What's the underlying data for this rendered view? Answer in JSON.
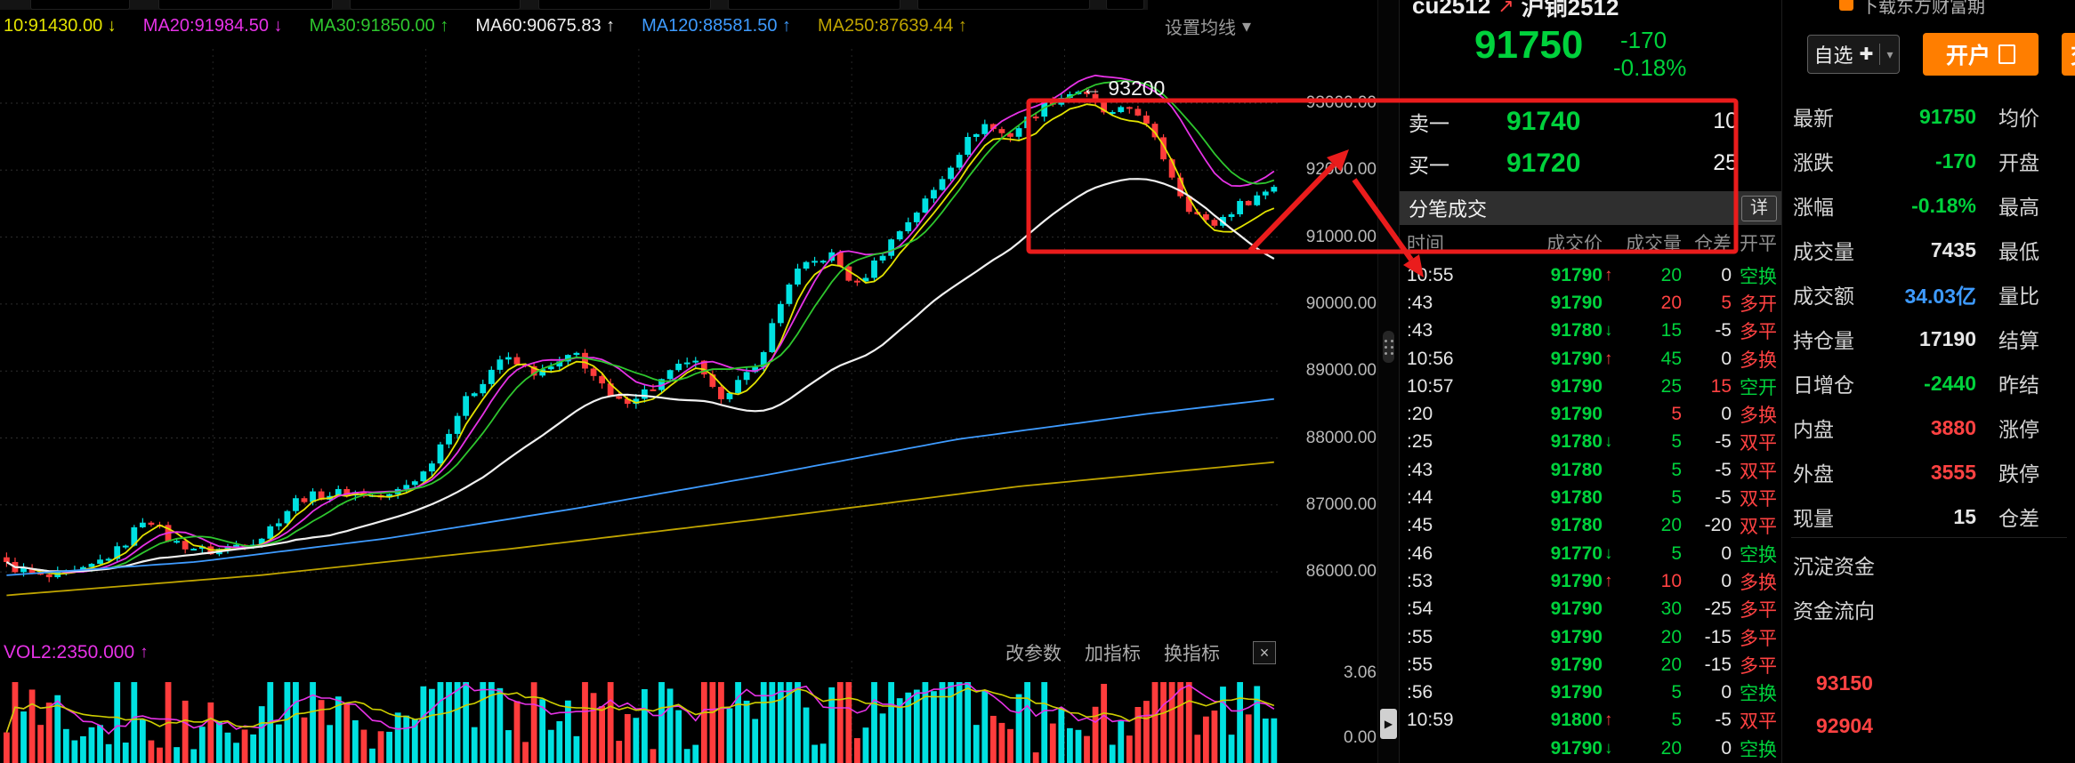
{
  "window": {
    "top_right_partial": "下载东方财富期"
  },
  "ma_bar": {
    "items": [
      {
        "text": "10:91430.00",
        "arrow": "↓",
        "color": "#e3e300"
      },
      {
        "text": "MA20:91984.50",
        "arrow": "↓",
        "color": "#e632e6"
      },
      {
        "text": "MA30:91850.00",
        "arrow": "↑",
        "color": "#2ec72e"
      },
      {
        "text": "MA60:90675.83",
        "arrow": "↑",
        "color": "#f0f0f0"
      },
      {
        "text": "MA120:88581.50",
        "arrow": "↑",
        "color": "#3e9bff"
      },
      {
        "text": "MA250:87639.44",
        "arrow": "↑",
        "color": "#bfa400"
      }
    ],
    "settings_label": "设置均线",
    "caret": "▾"
  },
  "chart_data": {
    "type": "candlestick",
    "title": "cu2512 沪铜2512",
    "y_axis_labels": [
      "93000.00",
      "92000.00",
      "91000.00",
      "90000.00",
      "89000.00",
      "88000.00",
      "87000.00",
      "86000.00"
    ],
    "peak_annotation": "← 93200",
    "candle_count": 150,
    "last_close": 91750,
    "price_path": [
      [
        0,
        86100
      ],
      [
        0.03,
        85900
      ],
      [
        0.06,
        86000
      ],
      [
        0.09,
        86350
      ],
      [
        0.11,
        86850
      ],
      [
        0.13,
        86450
      ],
      [
        0.16,
        86300
      ],
      [
        0.2,
        86500
      ],
      [
        0.23,
        87100
      ],
      [
        0.27,
        87200
      ],
      [
        0.3,
        87100
      ],
      [
        0.33,
        87500
      ],
      [
        0.36,
        88500
      ],
      [
        0.39,
        89200
      ],
      [
        0.42,
        88950
      ],
      [
        0.45,
        89250
      ],
      [
        0.48,
        88500
      ],
      [
        0.51,
        88750
      ],
      [
        0.54,
        89200
      ],
      [
        0.56,
        88600
      ],
      [
        0.59,
        89000
      ],
      [
        0.62,
        90450
      ],
      [
        0.65,
        90750
      ],
      [
        0.67,
        90250
      ],
      [
        0.7,
        91000
      ],
      [
        0.73,
        91650
      ],
      [
        0.75,
        92250
      ],
      [
        0.77,
        92700
      ],
      [
        0.79,
        92500
      ],
      [
        0.82,
        93000
      ],
      [
        0.845,
        93200
      ],
      [
        0.87,
        92800
      ],
      [
        0.89,
        92950
      ],
      [
        0.91,
        92300
      ],
      [
        0.93,
        91500
      ],
      [
        0.95,
        91150
      ],
      [
        0.97,
        91450
      ],
      [
        1,
        91750
      ]
    ],
    "ma_lines": [
      {
        "name": "MA10",
        "color": "#e3e300",
        "window": 4,
        "end": 91430.0
      },
      {
        "name": "MA20",
        "color": "#e632e6",
        "window": 7,
        "end": 91984.5
      },
      {
        "name": "MA30",
        "color": "#2ec72e",
        "window": 10,
        "end": 91850.0
      },
      {
        "name": "MA60",
        "color": "#f0f0f0",
        "window": 20,
        "end": 90675.83
      },
      {
        "name": "MA120",
        "color": "#3e9bff",
        "path": [
          [
            0,
            85950
          ],
          [
            0.15,
            86150
          ],
          [
            0.3,
            86500
          ],
          [
            0.45,
            86950
          ],
          [
            0.6,
            87450
          ],
          [
            0.75,
            87980
          ],
          [
            0.9,
            88360
          ],
          [
            1,
            88581.5
          ]
        ]
      },
      {
        "name": "MA250",
        "color": "#bfa400",
        "path": [
          [
            0,
            85650
          ],
          [
            0.2,
            85950
          ],
          [
            0.4,
            86350
          ],
          [
            0.6,
            86800
          ],
          [
            0.8,
            87280
          ],
          [
            1,
            87639.44
          ]
        ]
      }
    ],
    "volume": {
      "ma_colors": [
        "#e632e6",
        "#cfcf00"
      ]
    }
  },
  "vol_pane": {
    "legend": "VOL2:2350.000",
    "arrow": "↑",
    "buttons": [
      "改参数",
      "加指标",
      "换指标"
    ],
    "close": "×",
    "axis_max": "3.06",
    "axis_min": "0.00"
  },
  "tick_panel": {
    "symbol": "cu2512",
    "trend_icon": "↗",
    "name": "沪铜2512",
    "last_price": "91750",
    "change": "-170",
    "change_pct": "-0.18%",
    "orderbook": [
      {
        "label": "卖一",
        "price": "91740",
        "qty": "10"
      },
      {
        "label": "买一",
        "price": "91720",
        "qty": "25"
      }
    ],
    "section_title": "分笔成交",
    "detail_button": "详",
    "columns": [
      "时间",
      "成交价",
      "成交量",
      "仓差",
      "开平"
    ],
    "rows": [
      {
        "time": "10:55",
        "price": "91790",
        "arrow": "↑",
        "vol": "20",
        "volc": "g",
        "diff": "0",
        "diffc": "w",
        "type": "空换",
        "typec": "g"
      },
      {
        "time": ":43",
        "price": "91790",
        "arrow": "",
        "vol": "20",
        "volc": "r",
        "diff": "5",
        "diffc": "r",
        "type": "多开",
        "typec": "r"
      },
      {
        "time": ":43",
        "price": "91780",
        "arrow": "↓",
        "vol": "15",
        "volc": "g",
        "diff": "-5",
        "diffc": "w",
        "type": "多平",
        "typec": "r"
      },
      {
        "time": "10:56",
        "price": "91790",
        "arrow": "↑",
        "vol": "45",
        "volc": "g",
        "diff": "0",
        "diffc": "w",
        "type": "多换",
        "typec": "r"
      },
      {
        "time": "10:57",
        "price": "91790",
        "arrow": "",
        "vol": "25",
        "volc": "g",
        "diff": "15",
        "diffc": "r",
        "type": "空开",
        "typec": "g"
      },
      {
        "time": ":20",
        "price": "91790",
        "arrow": "",
        "vol": "5",
        "volc": "r",
        "diff": "0",
        "diffc": "w",
        "type": "多换",
        "typec": "r"
      },
      {
        "time": ":25",
        "price": "91780",
        "arrow": "↓",
        "vol": "5",
        "volc": "g",
        "diff": "-5",
        "diffc": "w",
        "type": "双平",
        "typec": "r"
      },
      {
        "time": ":43",
        "price": "91780",
        "arrow": "",
        "vol": "5",
        "volc": "g",
        "diff": "-5",
        "diffc": "w",
        "type": "双平",
        "typec": "r"
      },
      {
        "time": ":44",
        "price": "91780",
        "arrow": "",
        "vol": "5",
        "volc": "g",
        "diff": "-5",
        "diffc": "w",
        "type": "双平",
        "typec": "r"
      },
      {
        "time": ":45",
        "price": "91780",
        "arrow": "",
        "vol": "20",
        "volc": "g",
        "diff": "-20",
        "diffc": "w",
        "type": "双平",
        "typec": "r"
      },
      {
        "time": ":46",
        "price": "91770",
        "arrow": "↓",
        "vol": "5",
        "volc": "g",
        "diff": "0",
        "diffc": "w",
        "type": "空换",
        "typec": "g"
      },
      {
        "time": ":53",
        "price": "91790",
        "arrow": "↑",
        "vol": "10",
        "volc": "r",
        "diff": "0",
        "diffc": "w",
        "type": "多换",
        "typec": "r"
      },
      {
        "time": ":54",
        "price": "91790",
        "arrow": "",
        "vol": "30",
        "volc": "g",
        "diff": "-25",
        "diffc": "w",
        "type": "多平",
        "typec": "r"
      },
      {
        "time": ":55",
        "price": "91790",
        "arrow": "",
        "vol": "20",
        "volc": "g",
        "diff": "-15",
        "diffc": "w",
        "type": "多平",
        "typec": "r"
      },
      {
        "time": ":55",
        "price": "91790",
        "arrow": "",
        "vol": "20",
        "volc": "g",
        "diff": "-15",
        "diffc": "w",
        "type": "多平",
        "typec": "r"
      },
      {
        "time": ":56",
        "price": "91790",
        "arrow": "",
        "vol": "5",
        "volc": "g",
        "diff": "0",
        "diffc": "w",
        "type": "空换",
        "typec": "g"
      },
      {
        "time": "10:59",
        "price": "91800",
        "arrow": "↑",
        "vol": "5",
        "volc": "g",
        "diff": "-5",
        "diffc": "w",
        "type": "双平",
        "typec": "r"
      },
      {
        "time": "",
        "price": "91790",
        "arrow": "↓",
        "vol": "20",
        "volc": "g",
        "diff": "0",
        "diffc": "w",
        "type": "空换",
        "typec": "g"
      }
    ]
  },
  "quote_panel": {
    "watchlist_button": "自选",
    "plus_icon": "✚",
    "caret_icon": "▾",
    "open_account_button": "开户",
    "trade_button_partial": "交易",
    "rows": [
      {
        "label": "最新",
        "value": "91750",
        "c": "g",
        "label2": "均价"
      },
      {
        "label": "涨跌",
        "value": "-170",
        "c": "g",
        "label2": "开盘"
      },
      {
        "label": "涨幅",
        "value": "-0.18%",
        "c": "g",
        "label2": "最高"
      },
      {
        "label": "成交量",
        "value": "7435",
        "c": "w",
        "label2": "最低"
      },
      {
        "label": "成交额",
        "value": "34.03亿",
        "c": "b",
        "label2": "量比"
      },
      {
        "label": "持仓量",
        "value": "17190",
        "c": "w",
        "label2": "结算"
      },
      {
        "label": "日增仓",
        "value": "-2440",
        "c": "g",
        "label2": "昨结"
      },
      {
        "label": "内盘",
        "value": "3880",
        "c": "r",
        "label2": "涨停"
      },
      {
        "label": "外盘",
        "value": "3555",
        "c": "r",
        "label2": "跌停"
      },
      {
        "label": "现量",
        "value": "15",
        "c": "w",
        "label2": "仓差"
      }
    ],
    "sections": [
      "沉淀资金",
      "资金流向"
    ],
    "extra_values": [
      "93150",
      "92904"
    ]
  },
  "colors": {
    "green": "#00d23c",
    "red": "#ff4242",
    "blue": "#3e9bff",
    "magenta": "#e632e6",
    "orange": "#ff7e00",
    "annotation_red": "#ea1c1c",
    "candle_up": "#00e1e1",
    "candle_down": "#ff3c3c",
    "grid": "#2e2e2e"
  }
}
